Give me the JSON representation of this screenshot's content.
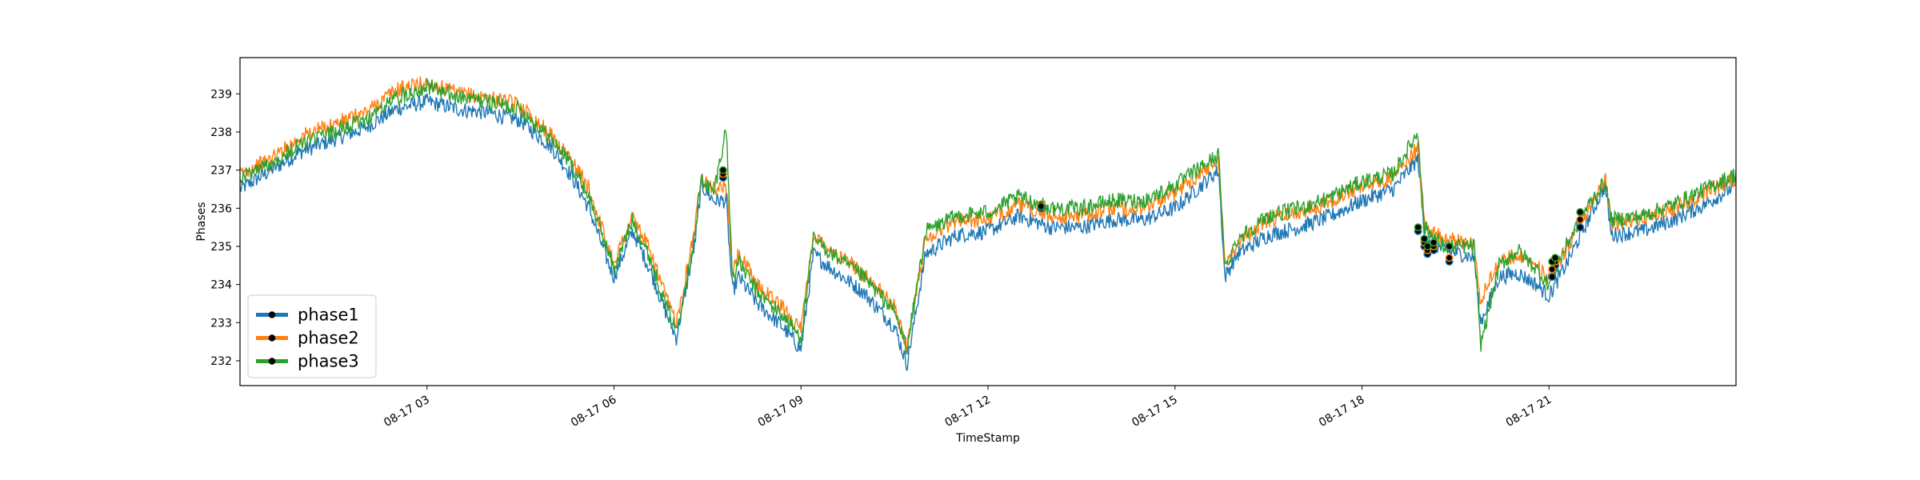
{
  "chart_data": {
    "type": "line",
    "xlabel": "TimeStamp",
    "ylabel": "Phases",
    "x_unit": "hours",
    "xlim": [
      0,
      24
    ],
    "ylim": [
      231.35,
      239.95
    ],
    "x_ticks": [
      {
        "value": 3,
        "label": "08-17 03"
      },
      {
        "value": 6,
        "label": "08-17 06"
      },
      {
        "value": 9,
        "label": "08-17 09"
      },
      {
        "value": 12,
        "label": "08-17 12"
      },
      {
        "value": 15,
        "label": "08-17 15"
      },
      {
        "value": 18,
        "label": "08-17 18"
      },
      {
        "value": 21,
        "label": "08-17 21"
      }
    ],
    "y_ticks": [
      232,
      233,
      234,
      235,
      236,
      237,
      238,
      239
    ],
    "grid": false,
    "legend": {
      "placement": "lower-left",
      "marker": "o"
    },
    "x": [
      0.0,
      0.5,
      1.0,
      1.5,
      2.0,
      2.5,
      3.0,
      3.5,
      4.0,
      4.5,
      5.0,
      5.3,
      5.6,
      5.9,
      6.0,
      6.3,
      6.6,
      6.8,
      7.0,
      7.3,
      7.4,
      7.5,
      7.6,
      7.8,
      7.9,
      8.0,
      8.3,
      8.7,
      9.0,
      9.2,
      9.5,
      10.0,
      10.5,
      10.7,
      11.0,
      11.5,
      12.0,
      12.5,
      13.0,
      13.5,
      14.0,
      14.5,
      15.0,
      15.7,
      15.8,
      16.0,
      16.5,
      17.0,
      17.5,
      18.0,
      18.5,
      18.9,
      19.0,
      19.3,
      19.6,
      19.8,
      19.9,
      20.2,
      20.5,
      20.8,
      21.0,
      21.3,
      21.6,
      21.9,
      22.0,
      22.5,
      23.0,
      23.5,
      24.0
    ],
    "series": [
      {
        "name": "phase1",
        "color": "#1f77b4",
        "values": [
          236.5,
          237.0,
          237.5,
          237.8,
          238.1,
          238.6,
          238.8,
          238.6,
          238.5,
          238.3,
          237.6,
          236.9,
          236.0,
          234.6,
          234.2,
          235.4,
          234.3,
          233.4,
          232.6,
          235.1,
          236.6,
          236.4,
          236.2,
          236.2,
          233.8,
          234.2,
          233.5,
          232.9,
          232.3,
          234.8,
          234.4,
          233.8,
          232.9,
          231.9,
          234.8,
          235.3,
          235.4,
          235.8,
          235.5,
          235.5,
          235.7,
          235.7,
          236.0,
          237.0,
          234.2,
          234.8,
          235.3,
          235.5,
          235.8,
          236.2,
          236.5,
          237.3,
          235.3,
          234.9,
          234.8,
          234.7,
          233.0,
          234.2,
          234.3,
          234.0,
          233.7,
          234.6,
          235.6,
          236.6,
          235.3,
          235.4,
          235.7,
          236.1,
          236.6
        ]
      },
      {
        "name": "phase2",
        "color": "#ff7f0e",
        "values": [
          236.9,
          237.3,
          237.9,
          238.2,
          238.5,
          239.1,
          239.3,
          239.0,
          238.9,
          238.7,
          237.9,
          237.3,
          236.5,
          235.0,
          234.6,
          235.8,
          234.8,
          233.8,
          233.0,
          235.5,
          236.9,
          236.7,
          236.5,
          236.6,
          234.3,
          234.8,
          234.0,
          233.4,
          232.8,
          235.3,
          234.9,
          234.3,
          233.4,
          232.4,
          235.2,
          235.7,
          235.7,
          236.1,
          235.8,
          235.8,
          236.0,
          236.0,
          236.4,
          237.3,
          234.5,
          235.1,
          235.7,
          235.9,
          236.2,
          236.6,
          236.8,
          237.6,
          235.6,
          235.2,
          235.1,
          235.1,
          233.6,
          234.6,
          234.8,
          234.5,
          234.1,
          235.0,
          235.9,
          236.8,
          235.6,
          235.7,
          236.0,
          236.4,
          236.8
        ]
      },
      {
        "name": "phase3",
        "color": "#2ca02c",
        "values": [
          236.8,
          237.2,
          237.7,
          238.0,
          238.3,
          238.9,
          239.2,
          238.9,
          238.8,
          238.6,
          237.8,
          237.2,
          236.3,
          234.9,
          234.4,
          235.7,
          234.6,
          233.6,
          232.8,
          235.3,
          236.8,
          236.6,
          236.4,
          238.1,
          234.2,
          234.6,
          233.8,
          233.2,
          232.6,
          235.2,
          234.8,
          234.2,
          233.3,
          232.3,
          235.4,
          235.8,
          235.9,
          236.3,
          236.0,
          236.0,
          236.2,
          236.2,
          236.6,
          237.4,
          234.4,
          235.2,
          235.8,
          236.0,
          236.3,
          236.7,
          236.9,
          238.0,
          235.5,
          235.0,
          235.0,
          235.0,
          232.4,
          234.5,
          234.9,
          234.4,
          234.0,
          235.1,
          236.0,
          236.7,
          235.7,
          235.8,
          236.1,
          236.5,
          236.9
        ]
      }
    ],
    "markers": [
      {
        "series": "phase1",
        "points": [
          [
            7.75,
            236.8
          ],
          [
            12.85,
            236.0
          ],
          [
            18.9,
            235.4
          ],
          [
            19.0,
            235.0
          ],
          [
            19.05,
            234.8
          ],
          [
            19.15,
            234.9
          ],
          [
            19.4,
            234.6
          ],
          [
            21.05,
            234.2
          ],
          [
            21.1,
            234.5
          ],
          [
            21.5,
            235.5
          ]
        ]
      },
      {
        "series": "phase2",
        "points": [
          [
            7.75,
            236.9
          ],
          [
            12.85,
            236.1
          ],
          [
            18.9,
            235.5
          ],
          [
            19.0,
            235.1
          ],
          [
            19.05,
            234.9
          ],
          [
            19.15,
            235.0
          ],
          [
            19.4,
            234.7
          ],
          [
            21.05,
            234.4
          ],
          [
            21.1,
            234.6
          ],
          [
            21.5,
            235.7
          ]
        ]
      },
      {
        "series": "phase3",
        "points": [
          [
            7.75,
            237.0
          ],
          [
            12.85,
            236.05
          ],
          [
            18.9,
            235.5
          ],
          [
            19.0,
            235.2
          ],
          [
            19.05,
            235.0
          ],
          [
            19.15,
            235.1
          ],
          [
            19.4,
            235.0
          ],
          [
            21.05,
            234.6
          ],
          [
            21.1,
            234.7
          ],
          [
            21.5,
            235.9
          ]
        ]
      }
    ]
  }
}
